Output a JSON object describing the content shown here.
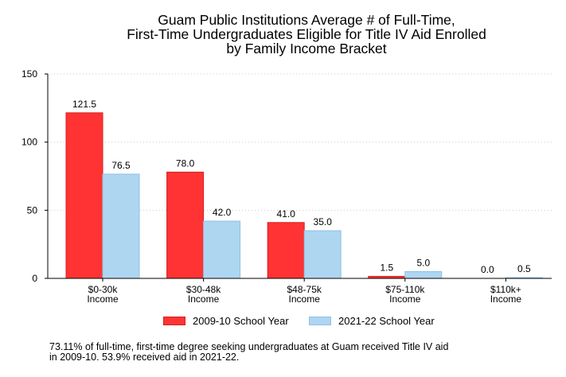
{
  "chart_data": {
    "type": "bar",
    "title_lines": [
      "Guam Public Institutions Average # of Full-Time,",
      "First-Time Undergraduates Eligible for Title IV Aid Enrolled",
      "by Family Income Bracket"
    ],
    "categories": [
      [
        "$0-30k",
        "Income"
      ],
      [
        "$30-48k",
        "Income"
      ],
      [
        "$48-75k",
        "Income"
      ],
      [
        "$75-110k",
        "Income"
      ],
      [
        "$110k+",
        "Income"
      ]
    ],
    "series": [
      {
        "name": "2009-10 School Year",
        "color": "#ff3333",
        "border": "#d42020",
        "values": [
          121.5,
          78.0,
          41.0,
          1.5,
          0.0
        ],
        "labels": [
          "121.5",
          "78.0",
          "41.0",
          "1.5",
          "0.0"
        ]
      },
      {
        "name": "2021-22 School Year",
        "color": "#aed6f1",
        "border": "#8fc1e4",
        "values": [
          76.5,
          42.0,
          35.0,
          5.0,
          0.5
        ],
        "labels": [
          "76.5",
          "42.0",
          "35.0",
          "5.0",
          "0.5"
        ]
      }
    ],
    "ylim": [
      0,
      150
    ],
    "yticks": [
      "0",
      "50",
      "100",
      "150"
    ],
    "grid": true,
    "legend_position": "bottom",
    "xlabel": "",
    "ylabel": ""
  },
  "footnote_lines": [
    "73.11% of full-time, first-time degree seeking undergraduates at Guam received Title IV aid",
    "in 2009-10. 53.9% received aid in 2021-22."
  ]
}
